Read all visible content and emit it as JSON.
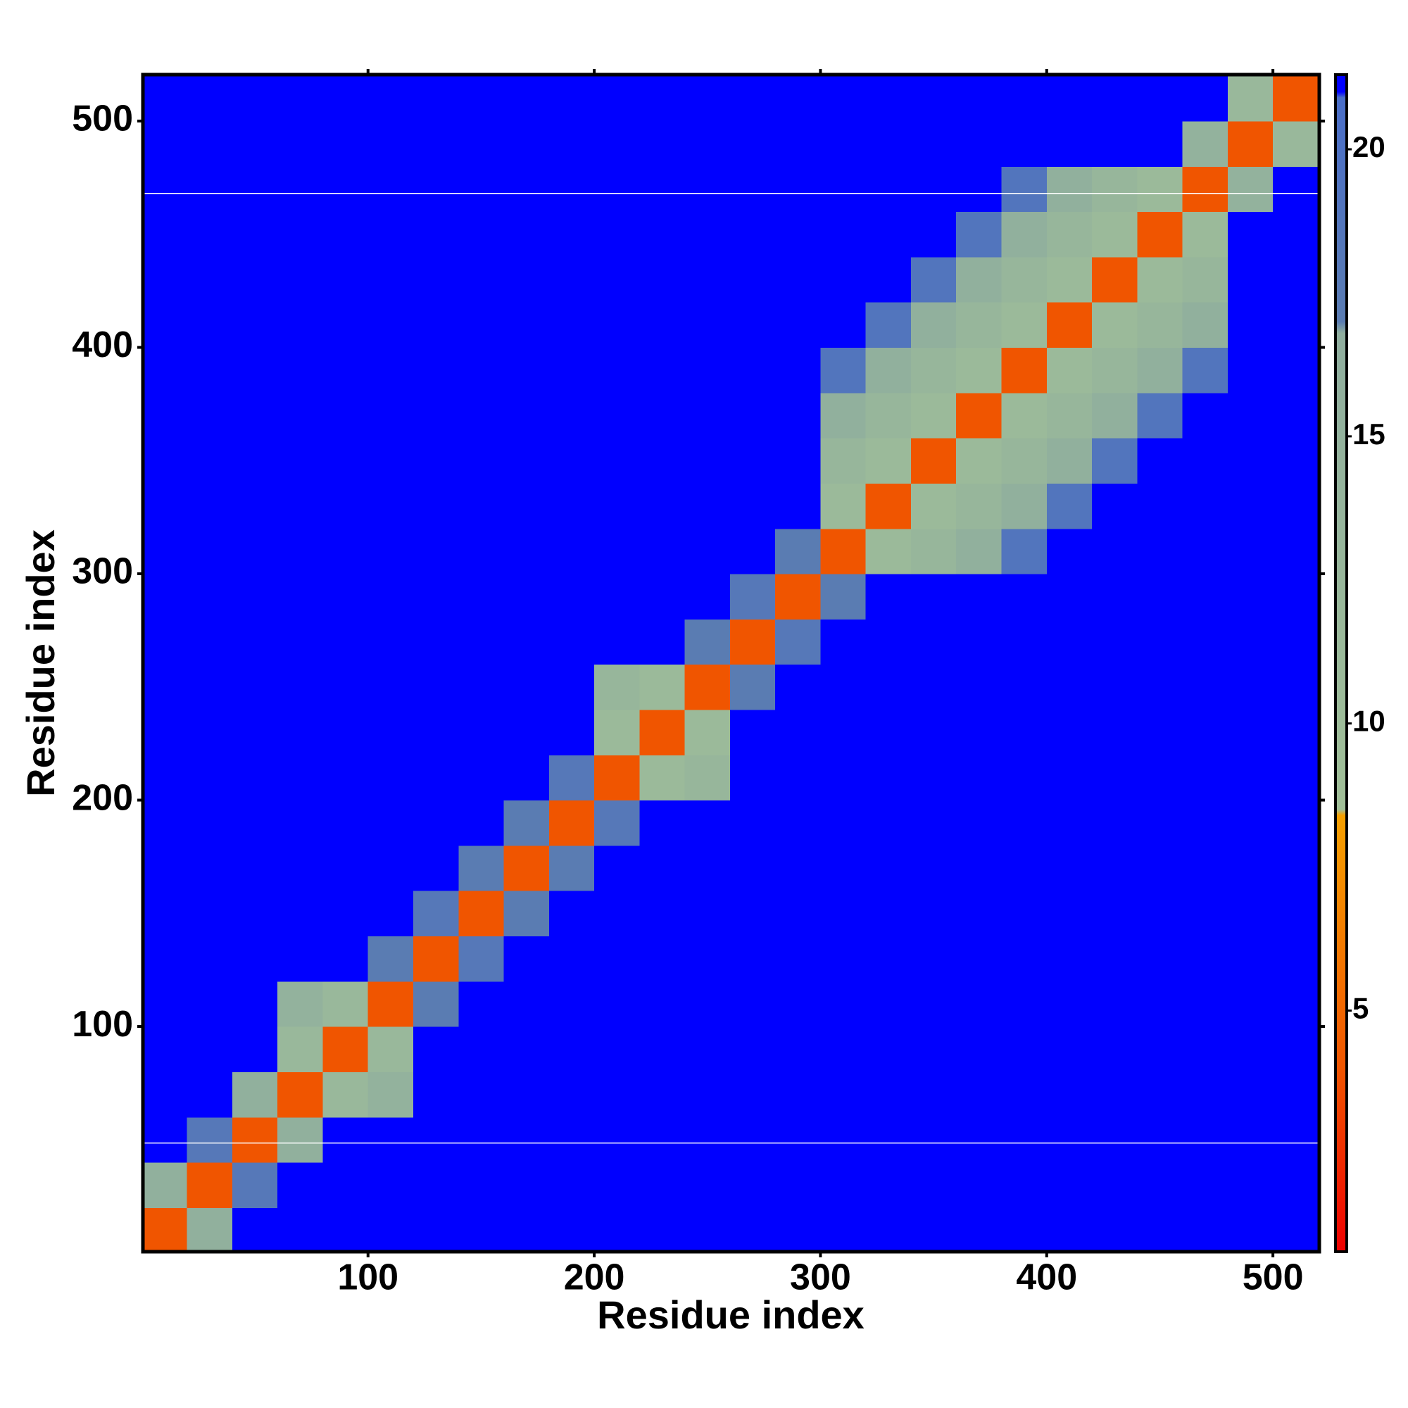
{
  "chart_data": {
    "type": "heatmap",
    "x_label": "Residue index",
    "y_label": "Residue index",
    "xlim": [
      0.5,
      520.5
    ],
    "ylim": [
      0.5,
      520.5
    ],
    "xticks": [
      100,
      200,
      300,
      400,
      500
    ],
    "yticks": [
      100,
      200,
      300,
      400,
      500
    ],
    "bin_edges": [
      0,
      20,
      40,
      60,
      80,
      100,
      120,
      140,
      160,
      180,
      200,
      220,
      240,
      260,
      280,
      300,
      320,
      340,
      360,
      380,
      400,
      420,
      440,
      460,
      480,
      500,
      520
    ],
    "z": [
      [
        4,
        16,
        21,
        21,
        21,
        21,
        21,
        21,
        21,
        21,
        21,
        21,
        21,
        21,
        21,
        21,
        21,
        21,
        21,
        21,
        21,
        21,
        21,
        21,
        21,
        21
      ],
      [
        16,
        4,
        18,
        21,
        21,
        21,
        21,
        21,
        21,
        21,
        21,
        21,
        21,
        21,
        21,
        21,
        21,
        21,
        21,
        21,
        21,
        21,
        21,
        21,
        21,
        21
      ],
      [
        21,
        18,
        4,
        16,
        21,
        21,
        21,
        21,
        21,
        21,
        21,
        21,
        21,
        21,
        21,
        21,
        21,
        21,
        21,
        21,
        21,
        21,
        21,
        21,
        21,
        21
      ],
      [
        21,
        21,
        16,
        4,
        12,
        15,
        21,
        21,
        21,
        21,
        21,
        21,
        21,
        21,
        21,
        21,
        21,
        21,
        21,
        21,
        21,
        21,
        21,
        21,
        21,
        21
      ],
      [
        21,
        21,
        21,
        12,
        4,
        12,
        21,
        21,
        21,
        21,
        21,
        21,
        21,
        21,
        21,
        21,
        21,
        21,
        21,
        21,
        21,
        21,
        21,
        21,
        21,
        21
      ],
      [
        21,
        21,
        21,
        15,
        12,
        4,
        17,
        21,
        21,
        21,
        21,
        21,
        21,
        21,
        21,
        21,
        21,
        21,
        21,
        21,
        21,
        21,
        21,
        21,
        21,
        21
      ],
      [
        21,
        21,
        21,
        21,
        21,
        17,
        4,
        18,
        21,
        21,
        21,
        21,
        21,
        21,
        21,
        21,
        21,
        21,
        21,
        21,
        21,
        21,
        21,
        21,
        21,
        21
      ],
      [
        21,
        21,
        21,
        21,
        21,
        21,
        18,
        4,
        17,
        21,
        21,
        21,
        21,
        21,
        21,
        21,
        21,
        21,
        21,
        21,
        21,
        21,
        21,
        21,
        21,
        21
      ],
      [
        21,
        21,
        21,
        21,
        21,
        21,
        21,
        17,
        4,
        17,
        21,
        21,
        21,
        21,
        21,
        21,
        21,
        21,
        21,
        21,
        21,
        21,
        21,
        21,
        21,
        21
      ],
      [
        21,
        21,
        21,
        21,
        21,
        21,
        21,
        21,
        17,
        4,
        18,
        21,
        21,
        21,
        21,
        21,
        21,
        21,
        21,
        21,
        21,
        21,
        21,
        21,
        21,
        21
      ],
      [
        21,
        21,
        21,
        21,
        21,
        21,
        21,
        21,
        21,
        18,
        4,
        11,
        13,
        21,
        21,
        21,
        21,
        21,
        21,
        21,
        21,
        21,
        21,
        21,
        21,
        21
      ],
      [
        21,
        21,
        21,
        21,
        21,
        21,
        21,
        21,
        21,
        21,
        11,
        4,
        11,
        21,
        21,
        21,
        21,
        21,
        21,
        21,
        21,
        21,
        21,
        21,
        21,
        21
      ],
      [
        21,
        21,
        21,
        21,
        21,
        21,
        21,
        21,
        21,
        21,
        13,
        11,
        4,
        17,
        21,
        21,
        21,
        21,
        21,
        21,
        21,
        21,
        21,
        21,
        21,
        21
      ],
      [
        21,
        21,
        21,
        21,
        21,
        21,
        21,
        21,
        21,
        21,
        21,
        21,
        17,
        4,
        18,
        21,
        21,
        21,
        21,
        21,
        21,
        21,
        21,
        21,
        21,
        21
      ],
      [
        21,
        21,
        21,
        21,
        21,
        21,
        21,
        21,
        21,
        21,
        21,
        21,
        21,
        18,
        4,
        17,
        21,
        21,
        21,
        21,
        21,
        21,
        21,
        21,
        21,
        21
      ],
      [
        21,
        21,
        21,
        21,
        21,
        21,
        21,
        21,
        21,
        21,
        21,
        21,
        21,
        21,
        17,
        4,
        11,
        13,
        16,
        19,
        21,
        21,
        21,
        21,
        21,
        21
      ],
      [
        21,
        21,
        21,
        21,
        21,
        21,
        21,
        21,
        21,
        21,
        21,
        21,
        21,
        21,
        21,
        11,
        4,
        11,
        13,
        16,
        19,
        21,
        21,
        21,
        21,
        21
      ],
      [
        21,
        21,
        21,
        21,
        21,
        21,
        21,
        21,
        21,
        21,
        21,
        21,
        21,
        21,
        21,
        13,
        11,
        4,
        11,
        13,
        16,
        19,
        21,
        21,
        21,
        21
      ],
      [
        21,
        21,
        21,
        21,
        21,
        21,
        21,
        21,
        21,
        21,
        21,
        21,
        21,
        21,
        21,
        16,
        13,
        11,
        4,
        11,
        13,
        16,
        19,
        21,
        21,
        21
      ],
      [
        21,
        21,
        21,
        21,
        21,
        21,
        21,
        21,
        21,
        21,
        21,
        21,
        21,
        21,
        21,
        19,
        16,
        13,
        11,
        4,
        11,
        13,
        16,
        19,
        21,
        21
      ],
      [
        21,
        21,
        21,
        21,
        21,
        21,
        21,
        21,
        21,
        21,
        21,
        21,
        21,
        21,
        21,
        21,
        19,
        16,
        13,
        11,
        4,
        11,
        13,
        16,
        21,
        21
      ],
      [
        21,
        21,
        21,
        21,
        21,
        21,
        21,
        21,
        21,
        21,
        21,
        21,
        21,
        21,
        21,
        21,
        21,
        19,
        16,
        13,
        11,
        4,
        11,
        13,
        21,
        21
      ],
      [
        21,
        21,
        21,
        21,
        21,
        21,
        21,
        21,
        21,
        21,
        21,
        21,
        21,
        21,
        21,
        21,
        21,
        21,
        19,
        16,
        13,
        11,
        4,
        11,
        21,
        21
      ],
      [
        21,
        21,
        21,
        21,
        21,
        21,
        21,
        21,
        21,
        21,
        21,
        21,
        21,
        21,
        21,
        21,
        21,
        21,
        21,
        19,
        16,
        13,
        11,
        4,
        15,
        21
      ],
      [
        21,
        21,
        21,
        21,
        21,
        21,
        21,
        21,
        21,
        21,
        21,
        21,
        21,
        21,
        21,
        21,
        21,
        21,
        21,
        21,
        21,
        21,
        21,
        15,
        4,
        12
      ],
      [
        21,
        21,
        21,
        21,
        21,
        21,
        21,
        21,
        21,
        21,
        21,
        21,
        21,
        21,
        21,
        21,
        21,
        21,
        21,
        21,
        21,
        21,
        21,
        21,
        12,
        4
      ]
    ],
    "zlim": [
      0.8,
      21.3
    ],
    "colorbar_ticks": [
      5,
      10,
      15,
      20
    ],
    "colorscale": [
      [
        0.8,
        "#ee0000"
      ],
      [
        4,
        "#f05500"
      ],
      [
        8.4,
        "#f5a000"
      ],
      [
        8.5,
        "#a0bf98"
      ],
      [
        16.8,
        "#8fae9e"
      ],
      [
        17,
        "#5a7cb2"
      ],
      [
        20.9,
        "#4a6ec8"
      ],
      [
        21,
        "#0000ff"
      ]
    ],
    "hlines": [
      48.5,
      468
    ],
    "hline_color": "#ffffff"
  }
}
